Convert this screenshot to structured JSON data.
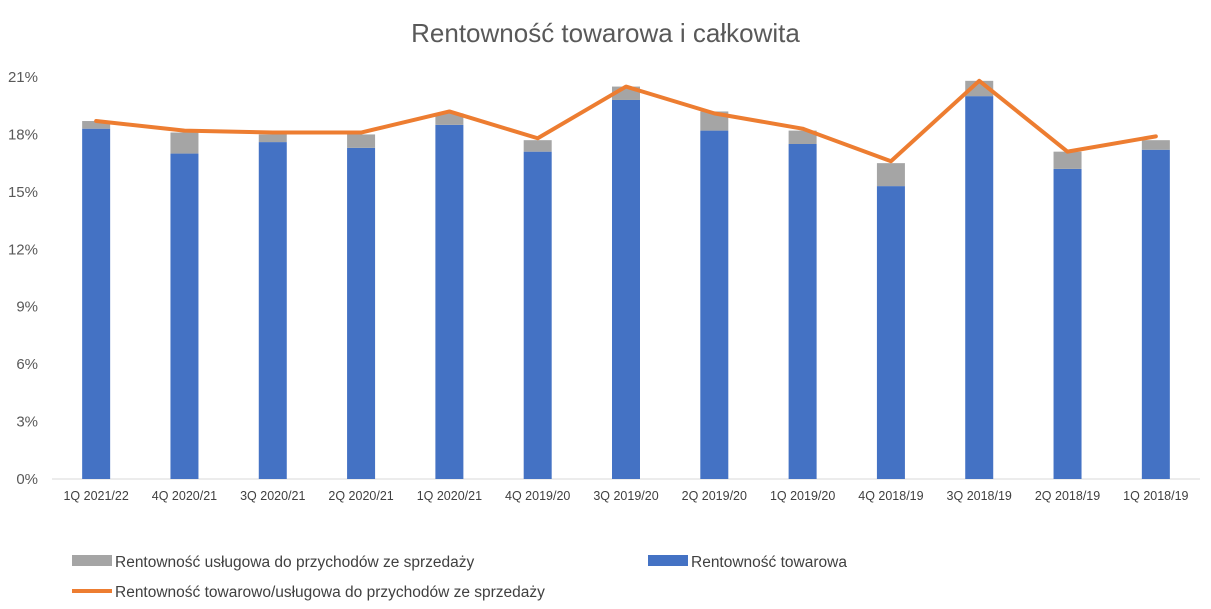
{
  "chart_data": {
    "type": "bar",
    "title": "Rentowność towarowa i całkowita",
    "categories": [
      "1Q 2021/22",
      "4Q 2020/21",
      "3Q 2020/21",
      "2Q 2020/21",
      "1Q 2020/21",
      "4Q 2019/20",
      "3Q 2019/20",
      "2Q 2019/20",
      "1Q 2019/20",
      "4Q 2018/19",
      "3Q 2018/19",
      "2Q 2018/19",
      "1Q 2018/19"
    ],
    "y_ticks": [
      "0%",
      "3%",
      "6%",
      "9%",
      "12%",
      "15%",
      "18%",
      "21%"
    ],
    "ylim": [
      0,
      21
    ],
    "grid": false,
    "legend_position": "bottom",
    "series": [
      {
        "name": "Rentowność towarowa",
        "kind": "bar-stacked",
        "color": "#4472C4",
        "values": [
          18.3,
          17.0,
          17.6,
          17.3,
          18.5,
          17.1,
          19.8,
          18.2,
          17.5,
          15.3,
          20.0,
          16.2,
          17.2
        ]
      },
      {
        "name": "Rentowność usługowa do przychodów ze sprzedaży",
        "kind": "bar-stacked",
        "color": "#A5A5A5",
        "values": [
          0.4,
          1.1,
          0.4,
          0.7,
          0.6,
          0.6,
          0.7,
          1.0,
          0.7,
          1.2,
          0.8,
          0.9,
          0.5
        ]
      },
      {
        "name": "Rentowność towarowo/usługowa do przychodów ze sprzedaży",
        "kind": "line",
        "color": "#ED7D31",
        "values": [
          18.7,
          18.2,
          18.1,
          18.1,
          19.2,
          17.8,
          20.5,
          19.1,
          18.3,
          16.6,
          20.8,
          17.1,
          17.9
        ]
      }
    ]
  }
}
